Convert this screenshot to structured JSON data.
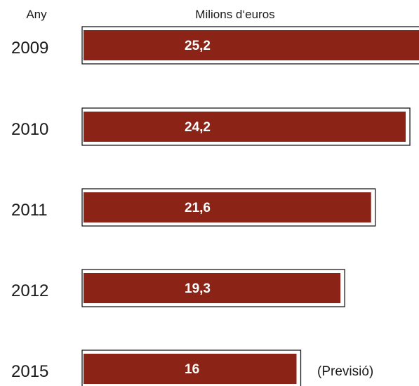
{
  "chart_data": {
    "type": "bar",
    "orientation": "horizontal",
    "category_header": "Any",
    "value_header": "Milions d‘euros",
    "categories": [
      "2009",
      "2010",
      "2011",
      "2012",
      "2015"
    ],
    "values": [
      25.2,
      24.2,
      21.6,
      19.3,
      16
    ],
    "value_labels": [
      "25,2",
      "24,2",
      "21,6",
      "19,3",
      "16"
    ],
    "annotations": [
      {
        "category": "2015",
        "text": "(Previsió)"
      }
    ],
    "xlim": [
      0,
      25.2
    ],
    "grid": false,
    "legend": "none"
  },
  "colors": {
    "bar": "#8b2416",
    "frame": "#1a1a1a",
    "text": "#1a1a1a",
    "label": "#ffffff"
  }
}
